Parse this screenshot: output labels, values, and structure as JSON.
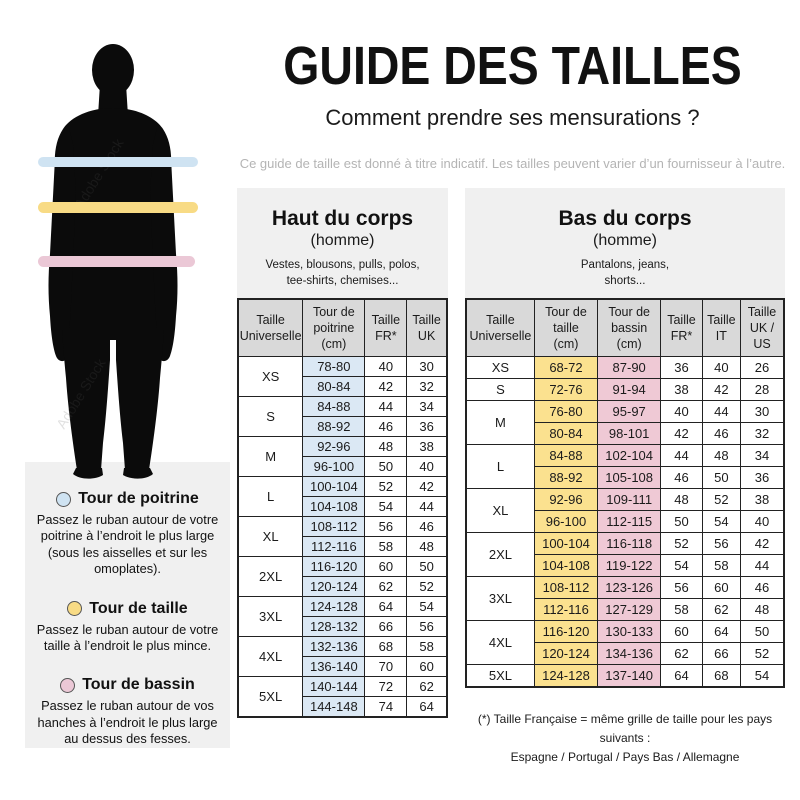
{
  "header": {
    "title": "GUIDE DES TAILLES",
    "subtitle": "Comment prendre ses mensurations ?",
    "disclaimer": "Ce guide de taille est donné à titre indicatif. Les tailles peuvent varier d’un fournisseur à l’autre."
  },
  "figure": {
    "watermark": "Adobe Stock",
    "band_colors": {
      "chest": "#cfe3f2",
      "waist": "#f8db85",
      "hip": "#ebc8d6"
    }
  },
  "legend": {
    "items": [
      {
        "name": "poitrine",
        "color": "#cfe3f2",
        "title": "Tour de poitrine",
        "text": "Passez le ruban autour de votre poitrine à l’endroit le plus large (sous les aisselles et sur les omoplates)."
      },
      {
        "name": "taille",
        "color": "#f8db85",
        "title": "Tour de taille",
        "text": "Passez le ruban autour de votre taille à l’endroit le plus mince."
      },
      {
        "name": "bassin",
        "color": "#ebc8d6",
        "title": "Tour de bassin",
        "text": "Passez le ruban autour de vos hanches à l’endroit le plus large au dessus des fesses."
      }
    ]
  },
  "upper_panel": {
    "title": "Haut du corps",
    "subtitle": "(homme)",
    "description": "Vestes, blousons, pulls, polos,\ntee-shirts, chemises...",
    "table": {
      "columns": [
        "Taille\nUniverselle",
        "Tour de\npoitrine\n(cm)",
        "Taille\nFR*",
        "Taille\nUK"
      ],
      "highlight": {
        "0": "#dbe8f4"
      },
      "groups": [
        {
          "size": "XS",
          "rows": [
            [
              "78-80",
              "40",
              "30"
            ],
            [
              "80-84",
              "42",
              "32"
            ]
          ]
        },
        {
          "size": "S",
          "rows": [
            [
              "84-88",
              "44",
              "34"
            ],
            [
              "88-92",
              "46",
              "36"
            ]
          ]
        },
        {
          "size": "M",
          "rows": [
            [
              "92-96",
              "48",
              "38"
            ],
            [
              "96-100",
              "50",
              "40"
            ]
          ]
        },
        {
          "size": "L",
          "rows": [
            [
              "100-104",
              "52",
              "42"
            ],
            [
              "104-108",
              "54",
              "44"
            ]
          ]
        },
        {
          "size": "XL",
          "rows": [
            [
              "108-112",
              "56",
              "46"
            ],
            [
              "112-116",
              "58",
              "48"
            ]
          ]
        },
        {
          "size": "2XL",
          "rows": [
            [
              "116-120",
              "60",
              "50"
            ],
            [
              "120-124",
              "62",
              "52"
            ]
          ]
        },
        {
          "size": "3XL",
          "rows": [
            [
              "124-128",
              "64",
              "54"
            ],
            [
              "128-132",
              "66",
              "56"
            ]
          ]
        },
        {
          "size": "4XL",
          "rows": [
            [
              "132-136",
              "68",
              "58"
            ],
            [
              "136-140",
              "70",
              "60"
            ]
          ]
        },
        {
          "size": "5XL",
          "rows": [
            [
              "140-144",
              "72",
              "62"
            ],
            [
              "144-148",
              "74",
              "64"
            ]
          ]
        }
      ]
    }
  },
  "lower_panel": {
    "title": "Bas du corps",
    "subtitle": "(homme)",
    "description": "Pantalons, jeans,\nshorts...",
    "table": {
      "columns": [
        "Taille\nUniverselle",
        "Tour de\ntaille\n(cm)",
        "Tour de\nbassin\n(cm)",
        "Taille\nFR*",
        "Taille\nIT",
        "Taille\nUK /\nUS"
      ],
      "highlight": {
        "0": "#fbe18f",
        "1": "#efc9d5"
      },
      "groups": [
        {
          "size": "XS",
          "rows": [
            [
              "68-72",
              "87-90",
              "36",
              "40",
              "26"
            ]
          ]
        },
        {
          "size": "S",
          "rows": [
            [
              "72-76",
              "91-94",
              "38",
              "42",
              "28"
            ]
          ]
        },
        {
          "size": "M",
          "rows": [
            [
              "76-80",
              "95-97",
              "40",
              "44",
              "30"
            ],
            [
              "80-84",
              "98-101",
              "42",
              "46",
              "32"
            ]
          ]
        },
        {
          "size": "L",
          "rows": [
            [
              "84-88",
              "102-104",
              "44",
              "48",
              "34"
            ],
            [
              "88-92",
              "105-108",
              "46",
              "50",
              "36"
            ]
          ]
        },
        {
          "size": "XL",
          "rows": [
            [
              "92-96",
              "109-111",
              "48",
              "52",
              "38"
            ],
            [
              "96-100",
              "112-115",
              "50",
              "54",
              "40"
            ]
          ]
        },
        {
          "size": "2XL",
          "rows": [
            [
              "100-104",
              "116-118",
              "52",
              "56",
              "42"
            ],
            [
              "104-108",
              "119-122",
              "54",
              "58",
              "44"
            ]
          ]
        },
        {
          "size": "3XL",
          "rows": [
            [
              "108-112",
              "123-126",
              "56",
              "60",
              "46"
            ],
            [
              "112-116",
              "127-129",
              "58",
              "62",
              "48"
            ]
          ]
        },
        {
          "size": "4XL",
          "rows": [
            [
              "116-120",
              "130-133",
              "60",
              "64",
              "50"
            ],
            [
              "120-124",
              "134-136",
              "62",
              "66",
              "52"
            ]
          ]
        },
        {
          "size": "5XL",
          "rows": [
            [
              "124-128",
              "137-140",
              "64",
              "68",
              "54"
            ]
          ]
        }
      ]
    }
  },
  "footnote": {
    "line1": "(*) Taille Française = même grille de taille pour les pays suivants :",
    "line2": "Espagne / Portugal / Pays Bas / Allemagne"
  }
}
